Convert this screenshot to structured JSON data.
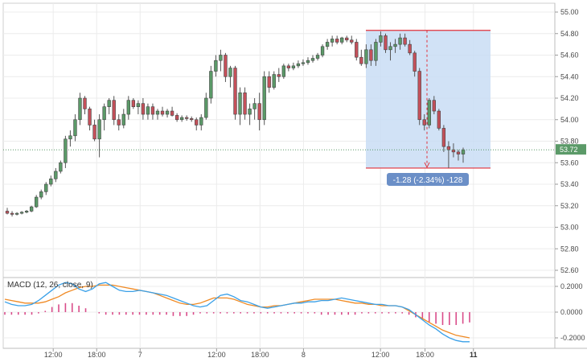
{
  "chart_data": [
    {
      "type": "candlestick",
      "title": "",
      "ylim": [
        52.5,
        55.05
      ],
      "y_ticks": [
        "55.00",
        "54.80",
        "54.60",
        "54.40",
        "54.20",
        "54.00",
        "53.80",
        "53.60",
        "53.40",
        "53.20",
        "53.00",
        "52.80",
        "52.60"
      ],
      "x_ticks": [
        {
          "label": "12:00",
          "bold": false,
          "pos": 0.088
        },
        {
          "label": "18:00",
          "bold": false,
          "pos": 0.167
        },
        {
          "label": "7",
          "bold": false,
          "pos": 0.246
        },
        {
          "label": "12:00",
          "bold": false,
          "pos": 0.385
        },
        {
          "label": "18:00",
          "bold": false,
          "pos": 0.464
        },
        {
          "label": "8",
          "bold": false,
          "pos": 0.543
        },
        {
          "label": "12:00",
          "bold": false,
          "pos": 0.683
        },
        {
          "label": "18:00",
          "bold": false,
          "pos": 0.764
        },
        {
          "label": "11",
          "bold": true,
          "pos": 0.852
        }
      ],
      "last_price": {
        "value": 53.72,
        "label": "53.72"
      },
      "measurement": {
        "label": "-1.28 (-2.34%) -128",
        "top_price": 54.83,
        "bottom_price": 53.55
      },
      "up_color": "#5b9a68",
      "down_color": "#c4505a",
      "candles": [
        [
          53.15,
          53.18,
          53.12,
          53.13
        ],
        [
          53.13,
          53.15,
          53.1,
          53.12
        ],
        [
          53.12,
          53.14,
          53.11,
          53.13
        ],
        [
          53.13,
          53.15,
          53.12,
          53.14
        ],
        [
          53.14,
          53.16,
          53.13,
          53.15
        ],
        [
          53.15,
          53.2,
          53.14,
          53.19
        ],
        [
          53.19,
          53.3,
          53.18,
          53.28
        ],
        [
          53.28,
          53.35,
          53.26,
          53.33
        ],
        [
          53.33,
          53.42,
          53.3,
          53.4
        ],
        [
          53.4,
          53.48,
          53.38,
          53.45
        ],
        [
          53.45,
          53.55,
          53.42,
          53.52
        ],
        [
          53.52,
          53.62,
          53.5,
          53.6
        ],
        [
          53.6,
          53.85,
          53.55,
          53.82
        ],
        [
          53.82,
          53.9,
          53.75,
          53.85
        ],
        [
          53.85,
          54.05,
          53.8,
          54.0
        ],
        [
          54.0,
          54.25,
          53.95,
          54.2
        ],
        [
          54.2,
          54.22,
          54.05,
          54.1
        ],
        [
          54.1,
          54.12,
          53.9,
          53.95
        ],
        [
          53.95,
          54.0,
          53.8,
          53.82
        ],
        [
          53.82,
          54.05,
          53.65,
          54.0
        ],
        [
          54.0,
          54.15,
          53.9,
          54.12
        ],
        [
          54.12,
          54.2,
          54.05,
          54.18
        ],
        [
          54.18,
          54.22,
          53.95,
          54.0
        ],
        [
          54.0,
          54.05,
          53.9,
          53.95
        ],
        [
          53.95,
          54.1,
          53.92,
          54.05
        ],
        [
          54.05,
          54.22,
          54.0,
          54.18
        ],
        [
          54.18,
          54.2,
          54.1,
          54.12
        ],
        [
          54.12,
          54.18,
          54.05,
          54.15
        ],
        [
          54.15,
          54.2,
          54.0,
          54.05
        ],
        [
          54.05,
          54.15,
          54.0,
          54.12
        ],
        [
          54.12,
          54.15,
          54.0,
          54.05
        ],
        [
          54.05,
          54.1,
          54.0,
          54.08
        ],
        [
          54.08,
          54.12,
          54.03,
          54.05
        ],
        [
          54.05,
          54.1,
          54.02,
          54.08
        ],
        [
          54.08,
          54.12,
          54.03,
          54.04
        ],
        [
          54.04,
          54.06,
          53.98,
          54.0
        ],
        [
          54.0,
          54.04,
          53.98,
          54.02
        ],
        [
          54.02,
          54.04,
          53.99,
          54.01
        ],
        [
          54.01,
          54.03,
          53.98,
          54.0
        ],
        [
          54.0,
          54.02,
          53.9,
          53.95
        ],
        [
          53.95,
          54.05,
          53.9,
          54.02
        ],
        [
          54.02,
          54.25,
          54.0,
          54.2
        ],
        [
          54.2,
          54.5,
          54.15,
          54.45
        ],
        [
          54.45,
          54.6,
          54.4,
          54.55
        ],
        [
          54.55,
          54.65,
          54.45,
          54.6
        ],
        [
          54.6,
          54.62,
          54.35,
          54.4
        ],
        [
          54.4,
          54.5,
          54.3,
          54.48
        ],
        [
          54.48,
          54.5,
          54.0,
          54.05
        ],
        [
          54.05,
          54.3,
          53.95,
          54.25
        ],
        [
          54.25,
          54.3,
          54.0,
          54.05
        ],
        [
          54.05,
          54.15,
          53.95,
          54.1
        ],
        [
          54.1,
          54.2,
          54.0,
          54.15
        ],
        [
          54.15,
          54.25,
          53.9,
          54.0
        ],
        [
          54.0,
          54.45,
          53.95,
          54.4
        ],
        [
          54.4,
          54.45,
          54.25,
          54.3
        ],
        [
          54.3,
          54.45,
          54.28,
          54.42
        ],
        [
          54.42,
          54.48,
          54.35,
          54.4
        ],
        [
          54.4,
          54.52,
          54.38,
          54.5
        ],
        [
          54.5,
          54.52,
          54.45,
          54.48
        ],
        [
          54.48,
          54.53,
          54.46,
          54.5
        ],
        [
          54.5,
          54.55,
          54.48,
          54.52
        ],
        [
          54.52,
          54.56,
          54.5,
          54.53
        ],
        [
          54.53,
          54.58,
          54.51,
          54.55
        ],
        [
          54.55,
          54.6,
          54.53,
          54.57
        ],
        [
          54.57,
          54.62,
          54.55,
          54.6
        ],
        [
          54.6,
          54.7,
          54.58,
          54.68
        ],
        [
          54.68,
          54.75,
          54.65,
          54.72
        ],
        [
          54.72,
          54.78,
          54.68,
          54.75
        ],
        [
          54.75,
          54.78,
          54.7,
          54.72
        ],
        [
          54.72,
          54.77,
          54.7,
          54.76
        ],
        [
          54.76,
          54.78,
          54.72,
          54.74
        ],
        [
          54.74,
          54.78,
          54.7,
          54.72
        ],
        [
          54.72,
          54.75,
          54.55,
          54.58
        ],
        [
          54.58,
          54.65,
          54.5,
          54.52
        ],
        [
          54.52,
          54.7,
          54.48,
          54.65
        ],
        [
          54.65,
          54.7,
          54.5,
          54.55
        ],
        [
          54.55,
          54.75,
          54.5,
          54.72
        ],
        [
          54.72,
          54.82,
          54.68,
          54.78
        ],
        [
          54.78,
          54.8,
          54.62,
          54.65
        ],
        [
          54.65,
          54.72,
          54.55,
          54.68
        ],
        [
          54.68,
          54.75,
          54.62,
          54.7
        ],
        [
          54.7,
          54.8,
          54.65,
          54.76
        ],
        [
          54.76,
          54.8,
          54.68,
          54.7
        ],
        [
          54.7,
          54.74,
          54.6,
          54.62
        ],
        [
          54.62,
          54.64,
          54.4,
          54.45
        ],
        [
          54.45,
          54.48,
          53.95,
          54.0
        ],
        [
          54.0,
          54.05,
          53.9,
          53.95
        ],
        [
          53.95,
          54.2,
          53.92,
          54.18
        ],
        [
          54.18,
          54.22,
          54.05,
          54.08
        ],
        [
          54.08,
          54.1,
          53.9,
          53.92
        ],
        [
          53.92,
          53.95,
          53.7,
          53.75
        ],
        [
          53.75,
          53.8,
          53.55,
          53.72
        ],
        [
          53.72,
          53.78,
          53.65,
          53.7
        ],
        [
          53.7,
          53.72,
          53.62,
          53.68
        ],
        [
          53.68,
          53.74,
          53.6,
          53.72
        ]
      ]
    },
    {
      "type": "macd",
      "title": "MACD (12, 26, close, 9)",
      "ylim": [
        -0.26,
        0.27
      ],
      "y_ticks": [
        "0.2000",
        "0.0000",
        "-0.2000"
      ],
      "macd_color": "#3aa0e8",
      "signal_color": "#f08a24",
      "hist_color": "#d94c8a",
      "macd": [
        0.08,
        0.06,
        0.05,
        0.05,
        0.06,
        0.09,
        0.13,
        0.17,
        0.21,
        0.23,
        0.22,
        0.18,
        0.16,
        0.18,
        0.22,
        0.23,
        0.2,
        0.17,
        0.16,
        0.16,
        0.17,
        0.16,
        0.15,
        0.14,
        0.13,
        0.11,
        0.09,
        0.07,
        0.05,
        0.04,
        0.05,
        0.09,
        0.13,
        0.14,
        0.12,
        0.09,
        0.08,
        0.06,
        0.04,
        0.03,
        0.04,
        0.05,
        0.06,
        0.07,
        0.07,
        0.08,
        0.08,
        0.09,
        0.09,
        0.1,
        0.11,
        0.1,
        0.09,
        0.08,
        0.07,
        0.06,
        0.06,
        0.05,
        0.05,
        0.04,
        0.02,
        -0.02,
        -0.06,
        -0.1,
        -0.13,
        -0.17,
        -0.2,
        -0.22,
        -0.23,
        -0.23
      ],
      "signal": [
        0.1,
        0.09,
        0.08,
        0.07,
        0.07,
        0.07,
        0.08,
        0.1,
        0.12,
        0.15,
        0.17,
        0.19,
        0.2,
        0.2,
        0.21,
        0.21,
        0.21,
        0.2,
        0.19,
        0.18,
        0.17,
        0.16,
        0.15,
        0.13,
        0.11,
        0.09,
        0.07,
        0.06,
        0.06,
        0.07,
        0.09,
        0.11,
        0.11,
        0.11,
        0.1,
        0.08,
        0.06,
        0.05,
        0.04,
        0.04,
        0.05,
        0.05,
        0.06,
        0.07,
        0.08,
        0.09,
        0.1,
        0.1,
        0.1,
        0.1,
        0.09,
        0.08,
        0.07,
        0.07,
        0.06,
        0.06,
        0.05,
        0.05,
        0.05,
        0.04,
        0.01,
        -0.02,
        -0.05,
        -0.08,
        -0.11,
        -0.14,
        -0.16,
        -0.18,
        -0.19,
        -0.2
      ],
      "hist": [
        -0.02,
        -0.02,
        -0.02,
        -0.02,
        -0.02,
        -0.01,
        0.01,
        0.04,
        0.06,
        0.07,
        0.07,
        0.05,
        0.03,
        0.0,
        -0.01,
        -0.02,
        -0.02,
        -0.02,
        -0.02,
        -0.02,
        -0.02,
        -0.02,
        -0.02,
        -0.02,
        -0.02,
        -0.03,
        -0.03,
        -0.03,
        -0.02,
        -0.01,
        -0.01,
        -0.01,
        -0.01,
        -0.01,
        -0.01,
        -0.01,
        -0.01,
        -0.01,
        -0.01,
        -0.01,
        -0.01,
        -0.01,
        -0.01,
        -0.01,
        -0.01,
        -0.01,
        -0.01,
        -0.02,
        -0.02,
        -0.02,
        -0.02,
        -0.02,
        -0.02,
        -0.01,
        -0.01,
        -0.01,
        -0.01,
        -0.01,
        -0.01,
        -0.01,
        -0.02,
        -0.04,
        -0.06,
        -0.08,
        -0.09,
        -0.1,
        -0.1,
        -0.1,
        -0.09,
        -0.08
      ]
    }
  ]
}
